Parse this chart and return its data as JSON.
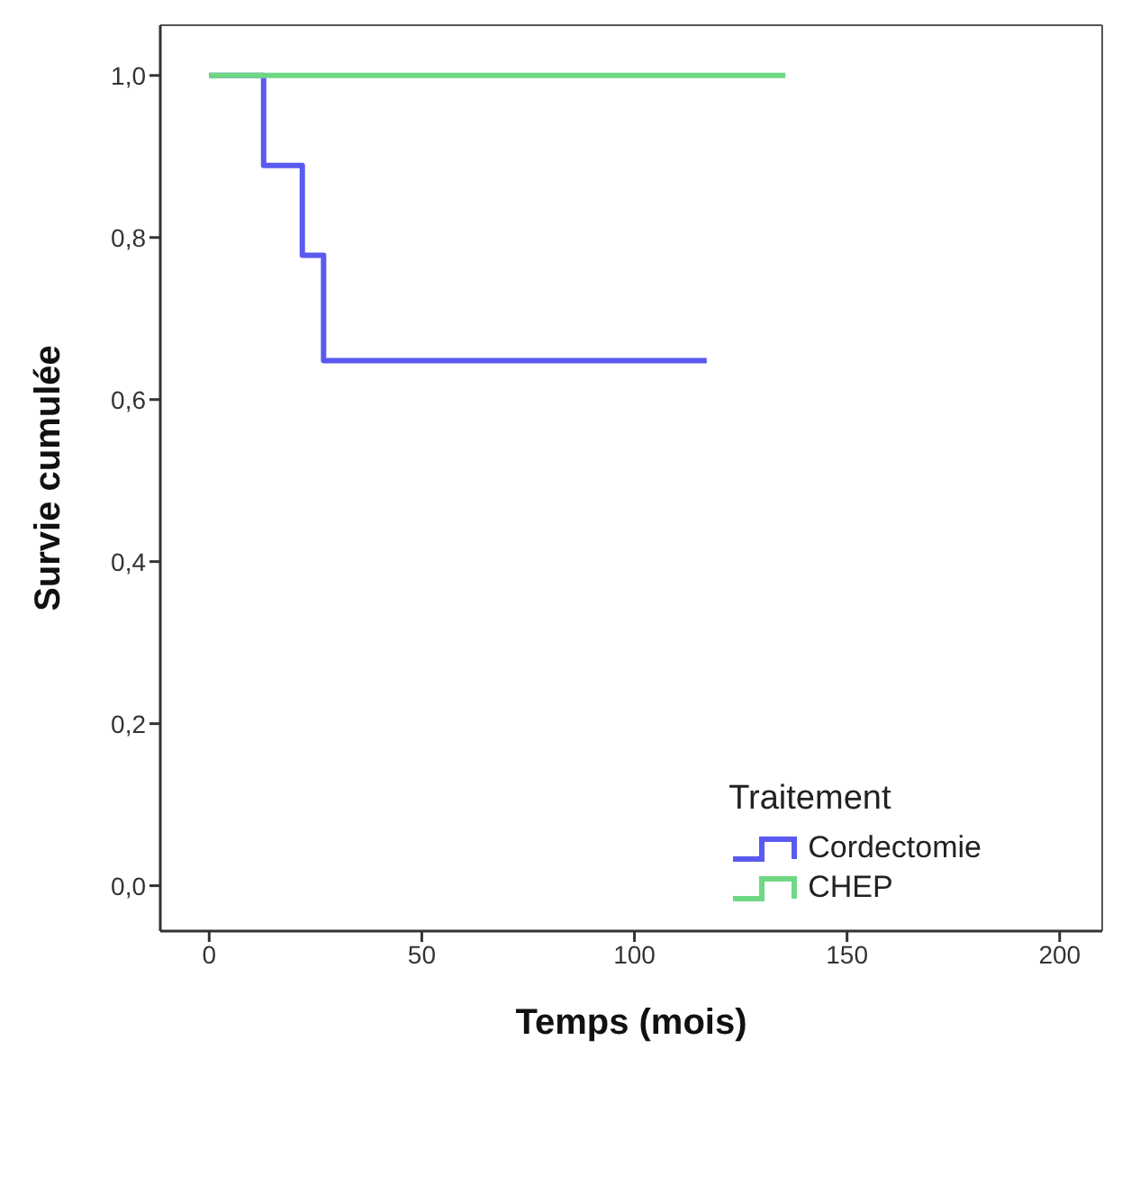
{
  "chart_data": {
    "type": "step",
    "xlabel": "Temps (mois)",
    "ylabel": "Survie cumulée",
    "legend_title": "Traitement",
    "legend": "bottom right",
    "xlim": [
      -11.5,
      210
    ],
    "xticks": [
      0,
      50,
      100,
      150,
      200
    ],
    "ylim": [
      -0.056,
      1.062
    ],
    "yticks": [
      {
        "value": 0,
        "label": "0,0"
      },
      {
        "value": 0.2,
        "label": "0,2"
      },
      {
        "value": 0.4,
        "label": "0,4"
      },
      {
        "value": 0.6,
        "label": "0,6"
      },
      {
        "value": 0.8,
        "label": "0,8"
      },
      {
        "value": 1,
        "label": "1,0"
      }
    ],
    "series": [
      {
        "name": "Cordectomie",
        "color": "#5a5af0",
        "x": [
          0,
          12.8,
          21.9,
          26.9,
          117
        ],
        "values": [
          1,
          0.889,
          0.778,
          0.648,
          0.648
        ]
      },
      {
        "name": "CHEP",
        "color": "#6fd884",
        "x": [
          0,
          135.5
        ],
        "values": [
          1,
          1
        ]
      }
    ]
  }
}
